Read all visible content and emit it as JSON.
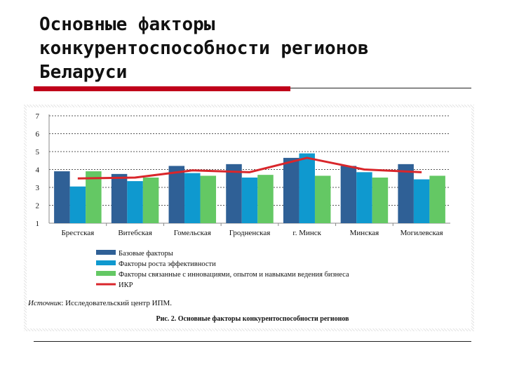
{
  "slide": {
    "title": "Основные факторы\nконкурентоспособности регионов\nБеларуси"
  },
  "figure": {
    "source_label": "Источник",
    "source_text": ": Исследовательский центр ИПМ.",
    "caption": "Рис. 2. Основные факторы конкурентоспособности регионов"
  },
  "chart_data": {
    "type": "bar",
    "title": "Рис. 2. Основные факторы конкурентоспособности регионов",
    "xlabel": "",
    "ylabel": "",
    "ylim": [
      1,
      7
    ],
    "yticks": [
      1,
      2,
      3,
      4,
      5,
      6,
      7
    ],
    "grid": "horizontal dashed",
    "legend_position": "bottom",
    "categories": [
      "Брестская",
      "Витебская",
      "Гомельская",
      "Гродненская",
      "г. Минск",
      "Минская",
      "Могилевская"
    ],
    "series": [
      {
        "name": "Базовые факторы",
        "kind": "bar",
        "color": "#2f6096",
        "values": [
          3.9,
          3.75,
          4.2,
          4.3,
          4.65,
          4.2,
          4.3
        ]
      },
      {
        "name": "Факторы роста эффективности",
        "kind": "bar",
        "color": "#0f99cf",
        "values": [
          3.05,
          3.35,
          3.8,
          3.55,
          4.9,
          3.85,
          3.45
        ]
      },
      {
        "name": "Факторы связанные с инновациями, опытом и навыками ведения бизнеса",
        "kind": "bar",
        "color": "#64c864",
        "values": [
          3.9,
          3.55,
          3.65,
          3.7,
          3.65,
          3.55,
          3.65
        ]
      },
      {
        "name": "ИКР",
        "kind": "line",
        "color": "#d9262b",
        "values": [
          3.5,
          3.55,
          3.95,
          3.85,
          4.65,
          4.0,
          3.85
        ]
      }
    ]
  }
}
